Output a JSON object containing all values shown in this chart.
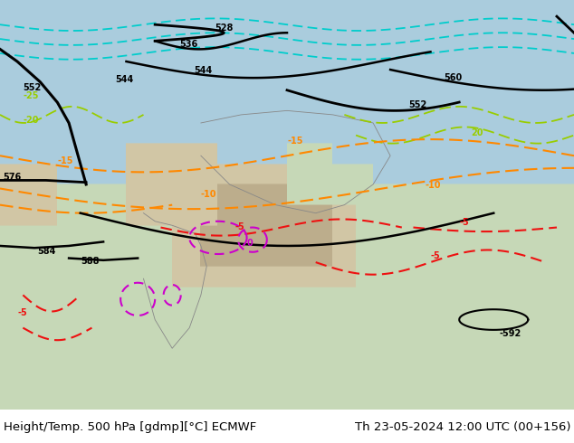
{
  "title_left": "Height/Temp. 500 hPa [gdmp][°C] ECMWF",
  "title_right": "Th 23-05-2024 12:00 UTC (00+156)",
  "fig_width": 6.34,
  "fig_height": 4.9,
  "dpi": 100,
  "background_color": "#ffffff",
  "caption_color": "#000000",
  "caption_fontsize": 9.5,
  "map_bg_land": "#c8d8a8",
  "map_bg_ocean": "#a8c8d8",
  "map_bg_mountains": "#c8b890",
  "map_bg_tibet": "#b8a878"
}
